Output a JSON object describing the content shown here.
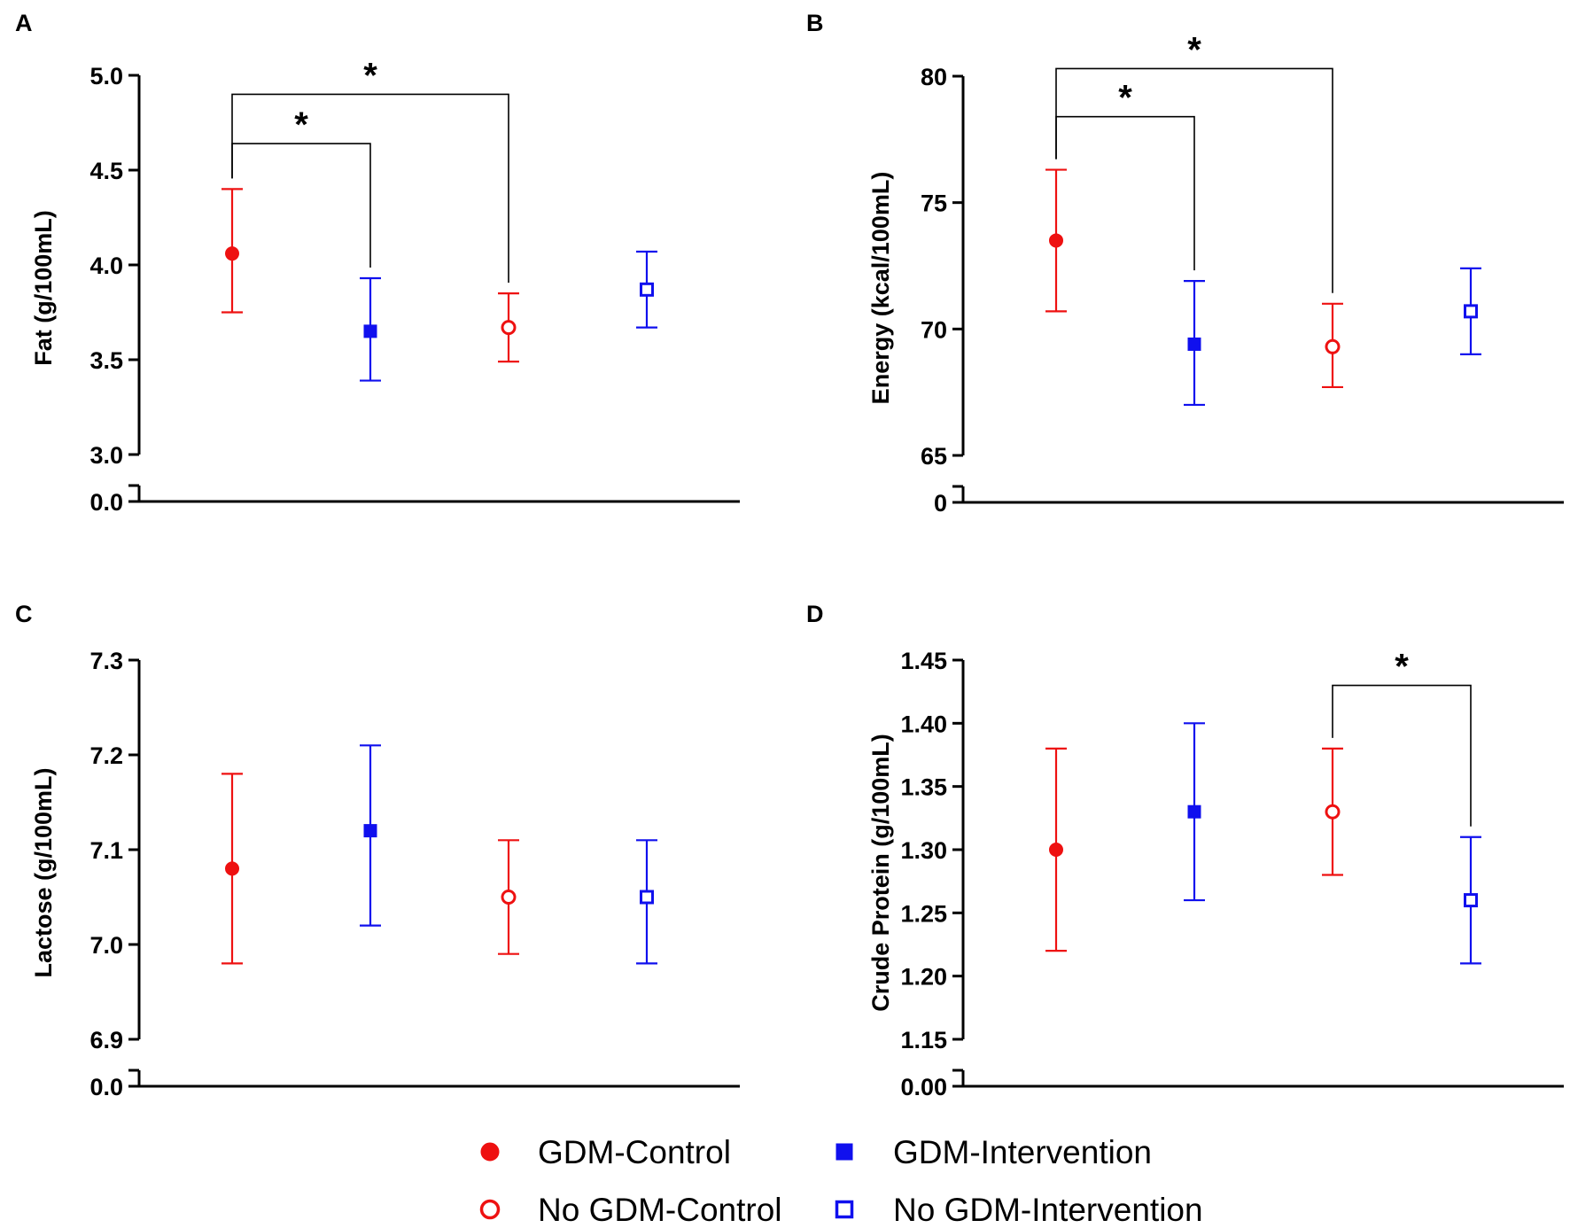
{
  "chart_data": [
    {
      "type": "scatter",
      "panel": "A",
      "ylabel": "Fat (g/100mL)",
      "ylim": [
        3.0,
        5.0
      ],
      "yticks": [
        "3.0",
        "3.5",
        "4.0",
        "4.5",
        "5.0"
      ],
      "break_label": "0.0",
      "groups": [
        {
          "group": "GDM-Control",
          "mean": 4.06,
          "lower": 3.75,
          "upper": 4.4
        },
        {
          "group": "GDM-Intervention",
          "mean": 3.65,
          "lower": 3.39,
          "upper": 3.93
        },
        {
          "group": "No GDM-Control",
          "mean": 3.67,
          "lower": 3.49,
          "upper": 3.85
        },
        {
          "group": "No GDM-Intervention",
          "mean": 3.87,
          "lower": 3.67,
          "upper": 4.07
        }
      ],
      "significance": [
        {
          "from": 0,
          "to": 1,
          "label": "*",
          "level": 4.64
        },
        {
          "from": 0,
          "to": 2,
          "label": "*",
          "level": 4.9
        }
      ]
    },
    {
      "type": "scatter",
      "panel": "B",
      "ylabel": "Energy (kcal/100mL)",
      "ylim": [
        65,
        80
      ],
      "yticks": [
        "65",
        "70",
        "75",
        "80"
      ],
      "break_label": "0",
      "groups": [
        {
          "group": "GDM-Control",
          "mean": 73.5,
          "lower": 70.7,
          "upper": 76.3
        },
        {
          "group": "GDM-Intervention",
          "mean": 69.4,
          "lower": 67.0,
          "upper": 71.9
        },
        {
          "group": "No GDM-Control",
          "mean": 69.3,
          "lower": 67.7,
          "upper": 71.0
        },
        {
          "group": "No GDM-Intervention",
          "mean": 70.7,
          "lower": 69.0,
          "upper": 72.4
        }
      ],
      "significance": [
        {
          "from": 0,
          "to": 1,
          "label": "*",
          "level": 78.4
        },
        {
          "from": 0,
          "to": 2,
          "label": "*",
          "level": 80.3
        }
      ]
    },
    {
      "type": "scatter",
      "panel": "C",
      "ylabel": "Lactose (g/100mL)",
      "ylim": [
        6.9,
        7.3
      ],
      "yticks": [
        "6.9",
        "7.0",
        "7.1",
        "7.2",
        "7.3"
      ],
      "break_label": "0.0",
      "groups": [
        {
          "group": "GDM-Control",
          "mean": 7.08,
          "lower": 6.98,
          "upper": 7.18
        },
        {
          "group": "GDM-Intervention",
          "mean": 7.12,
          "lower": 7.02,
          "upper": 7.21
        },
        {
          "group": "No GDM-Control",
          "mean": 7.05,
          "lower": 6.99,
          "upper": 7.11
        },
        {
          "group": "No GDM-Intervention",
          "mean": 7.05,
          "lower": 6.98,
          "upper": 7.11
        }
      ],
      "significance": []
    },
    {
      "type": "scatter",
      "panel": "D",
      "ylabel": "Crude Protein (g/100mL)",
      "ylim": [
        1.15,
        1.45
      ],
      "yticks": [
        "1.15",
        "1.20",
        "1.25",
        "1.30",
        "1.35",
        "1.40",
        "1.45"
      ],
      "break_label": "0.00",
      "groups": [
        {
          "group": "GDM-Control",
          "mean": 1.3,
          "lower": 1.22,
          "upper": 1.38
        },
        {
          "group": "GDM-Intervention",
          "mean": 1.33,
          "lower": 1.26,
          "upper": 1.4
        },
        {
          "group": "No GDM-Control",
          "mean": 1.33,
          "lower": 1.28,
          "upper": 1.38
        },
        {
          "group": "No GDM-Intervention",
          "mean": 1.26,
          "lower": 1.21,
          "upper": 1.31
        }
      ],
      "significance": [
        {
          "from": 2,
          "to": 3,
          "label": "*",
          "level": 1.43
        }
      ]
    }
  ],
  "series_styles": [
    {
      "name": "GDM-Control",
      "color": "#ee1111",
      "marker": "circle",
      "filled": true
    },
    {
      "name": "GDM-Intervention",
      "color": "#1010ee",
      "marker": "square",
      "filled": true
    },
    {
      "name": "No GDM-Control",
      "color": "#ee1111",
      "marker": "circle",
      "filled": false
    },
    {
      "name": "No GDM-Intervention",
      "color": "#1010ee",
      "marker": "square",
      "filled": false
    }
  ],
  "legend": [
    {
      "label": "GDM-Control",
      "style": 0
    },
    {
      "label": "GDM-Intervention",
      "style": 1
    },
    {
      "label": "No GDM-Control",
      "style": 2
    },
    {
      "label": "No GDM-Intervention",
      "style": 3
    }
  ]
}
